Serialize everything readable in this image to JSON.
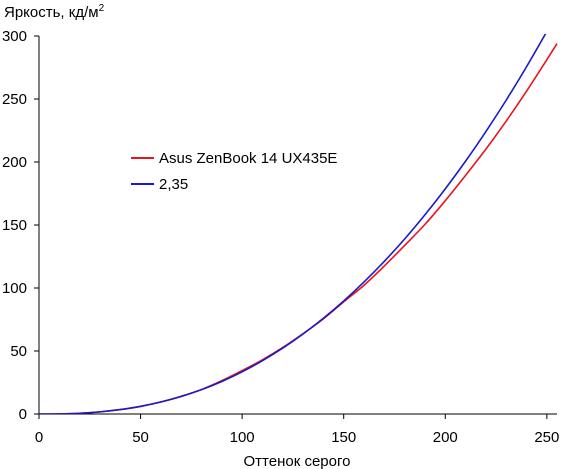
{
  "chart_data": {
    "type": "line",
    "title": "",
    "ylabel": "Яркость, кд/м",
    "ylabel_sup": "2",
    "xlabel": "Оттенок серого",
    "xlim": [
      0,
      255
    ],
    "ylim": [
      0,
      300
    ],
    "xticks": [
      0,
      50,
      100,
      150,
      200,
      250
    ],
    "yticks": [
      0,
      50,
      100,
      150,
      200,
      250,
      300
    ],
    "grid": false,
    "legend_position": "center-left",
    "series": [
      {
        "name": "Asus ZenBook 14 UX435E",
        "color": "#e8161c",
        "x": [
          0,
          10,
          20,
          30,
          40,
          50,
          60,
          70,
          80,
          90,
          100,
          110,
          120,
          130,
          140,
          150,
          160,
          170,
          180,
          190,
          200,
          210,
          220,
          230,
          240,
          250,
          255
        ],
        "y": [
          0,
          0.1,
          0.6,
          1.7,
          3.5,
          6.1,
          9.6,
          14.1,
          19.4,
          26.5,
          34.5,
          43.0,
          52.8,
          63.8,
          75.5,
          89.0,
          102.2,
          117.5,
          133.8,
          150.5,
          169.3,
          189.4,
          210.2,
          232.5,
          256.2,
          281.2,
          294.0
        ]
      },
      {
        "name": "2,35",
        "color": "#1c19c8",
        "x": [
          0,
          10,
          20,
          30,
          40,
          50,
          60,
          70,
          80,
          90,
          100,
          110,
          120,
          130,
          140,
          150,
          160,
          170,
          180,
          190,
          200,
          210,
          220,
          230,
          240,
          250,
          255
        ],
        "y": [
          0,
          0.1,
          0.6,
          1.7,
          3.5,
          6.0,
          9.5,
          13.9,
          19.3,
          25.8,
          33.5,
          42.3,
          52.3,
          63.5,
          76.0,
          89.7,
          104.8,
          121.2,
          138.9,
          158.1,
          178.7,
          200.7,
          224.2,
          249.1,
          275.6,
          303.6,
          318.2
        ]
      }
    ]
  }
}
